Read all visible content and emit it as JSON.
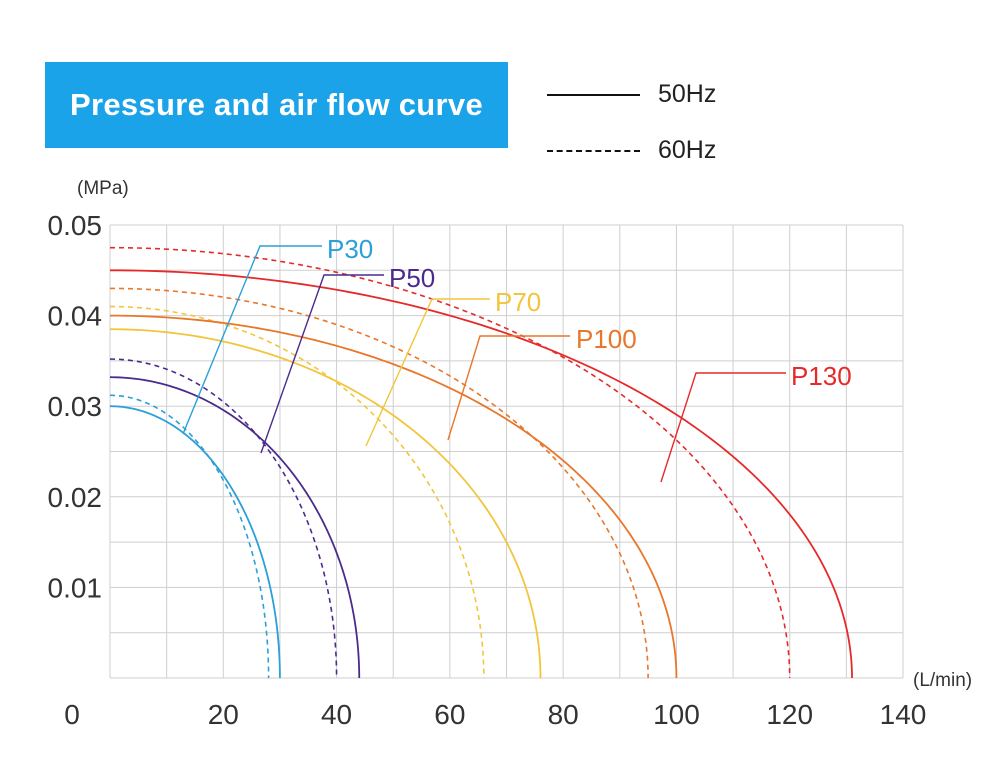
{
  "title": "Pressure and air flow curve",
  "legend": {
    "solid_label": "50Hz",
    "dashed_label": "60Hz"
  },
  "chart_data": {
    "type": "line",
    "title": "Pressure and air flow curve",
    "xlabel": "(L/min)",
    "ylabel": "(MPa)",
    "xlim": [
      0,
      140
    ],
    "ylim": [
      0,
      0.05
    ],
    "x_ticks": [
      "0",
      "20",
      "40",
      "60",
      "80",
      "100",
      "120",
      "140"
    ],
    "y_ticks": [
      "0.01",
      "0.02",
      "0.03",
      "0.04",
      "0.05"
    ],
    "grid": true,
    "series": [
      {
        "name": "P30",
        "color": "#2a9fd8",
        "hz50": {
          "p0": 0.03,
          "qmax": 30
        },
        "hz60": {
          "p0": 0.0312,
          "qmax": 28
        }
      },
      {
        "name": "P50",
        "color": "#4b2c8c",
        "hz50": {
          "p0": 0.0332,
          "qmax": 44
        },
        "hz60": {
          "p0": 0.0352,
          "qmax": 40
        }
      },
      {
        "name": "P70",
        "color": "#f2c53d",
        "hz50": {
          "p0": 0.0385,
          "qmax": 76
        },
        "hz60": {
          "p0": 0.041,
          "qmax": 66
        }
      },
      {
        "name": "P100",
        "color": "#e8772a",
        "hz50": {
          "p0": 0.04,
          "qmax": 100
        },
        "hz60": {
          "p0": 0.043,
          "qmax": 95
        }
      },
      {
        "name": "P130",
        "color": "#e62a2a",
        "hz50": {
          "p0": 0.045,
          "qmax": 131
        },
        "hz60": {
          "p0": 0.0475,
          "qmax": 120
        }
      }
    ]
  }
}
